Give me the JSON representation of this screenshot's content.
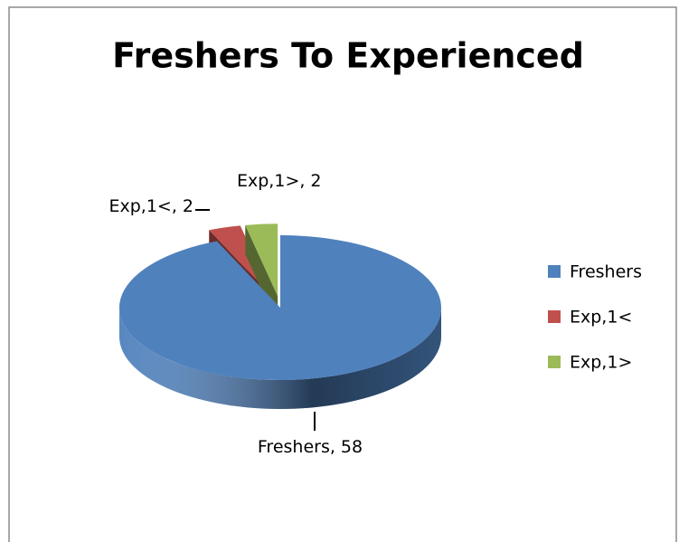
{
  "chart_data": {
    "type": "pie",
    "title": "Freshers To Experienced",
    "categories": [
      "Freshers",
      "Exp,1<",
      "Exp,1>"
    ],
    "values": [
      58,
      2,
      2
    ],
    "value_labels": [
      "Freshers, 58",
      "Exp,1<, 2",
      "Exp,1>, 2"
    ],
    "colors": [
      "#4f81bd",
      "#c0504d",
      "#9bbb59"
    ],
    "legend": "right"
  }
}
